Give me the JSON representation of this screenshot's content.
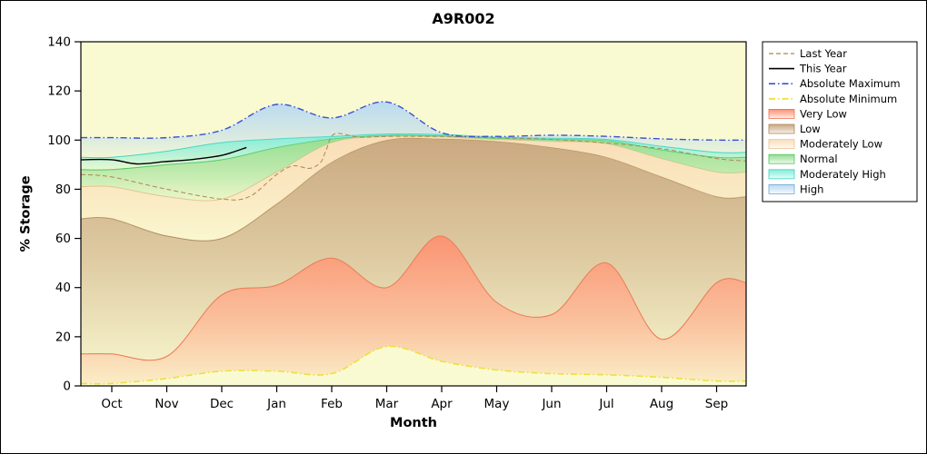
{
  "page": {
    "title": "A9R002"
  },
  "chart_data": {
    "type": "area",
    "title": "A9R002",
    "xlabel": "Month",
    "ylabel": "% Storage",
    "x_categories": [
      "Oct",
      "Nov",
      "Dec",
      "Jan",
      "Feb",
      "Mar",
      "Apr",
      "May",
      "Jun",
      "Jul",
      "Aug",
      "Sep"
    ],
    "ylim": [
      0,
      140
    ],
    "yticks": [
      0,
      20,
      40,
      60,
      80,
      100,
      120,
      140
    ],
    "plot_background": "#FAFAD2",
    "grid": false,
    "legend_position": "outside-right",
    "boundaries": {
      "abs_min": [
        1,
        3,
        6,
        6,
        5,
        16,
        10,
        6.5,
        5,
        4.5,
        3.5,
        2
      ],
      "very_low_top": [
        13,
        12,
        37,
        41,
        52,
        40,
        61,
        34,
        29,
        50,
        19,
        42
      ],
      "low_top": [
        68,
        61,
        60,
        74,
        91,
        100,
        100.5,
        99.5,
        97,
        93,
        85,
        77
      ],
      "moderately_low_top": [
        81,
        77,
        76,
        87,
        99,
        101.5,
        101.3,
        100.3,
        99.5,
        98.5,
        92.5,
        87
      ],
      "normal_top": [
        88,
        90,
        92,
        97,
        100.5,
        102,
        101.8,
        100.8,
        100.3,
        99.8,
        96,
        93
      ],
      "moderately_high_top": [
        93,
        95.5,
        99,
        100.5,
        101.5,
        102.5,
        102.3,
        101.2,
        100.8,
        100.3,
        97.5,
        95
      ],
      "abs_max": [
        101,
        101,
        104,
        114.5,
        109,
        115.5,
        103,
        101.5,
        102,
        101.5,
        100.5,
        100
      ]
    },
    "bands": [
      {
        "name": "Very Low",
        "fill": "#FA8E6E",
        "edge": "#F2714C",
        "lower": "abs_min",
        "upper": "very_low_top"
      },
      {
        "name": "Low",
        "fill": "#C8A57C",
        "edge": "#AA8A5A",
        "lower": "very_low_top",
        "upper": "low_top"
      },
      {
        "name": "Moderately Low",
        "fill": "#F9DCB6",
        "edge": "#EAC491",
        "lower": "low_top",
        "upper": "moderately_low_top"
      },
      {
        "name": "Normal",
        "fill": "#8EDC8E",
        "edge": "#52C452",
        "lower": "moderately_low_top",
        "upper": "normal_top"
      },
      {
        "name": "Moderately High",
        "fill": "#7DEBD9",
        "edge": "#38D6BE",
        "lower": "normal_top",
        "upper": "moderately_high_top"
      },
      {
        "name": "High",
        "fill": "#B7D8F2",
        "edge": "none",
        "lower": "moderately_high_top",
        "upper": "abs_max"
      }
    ],
    "lines": [
      {
        "name": "Last Year",
        "color": "#B08552",
        "dash": "5 3",
        "width": 1,
        "x": [
          -0.56,
          0,
          1,
          2,
          2.5,
          3,
          3.3,
          3.6,
          3.8,
          3.9,
          4.05,
          4.5,
          5,
          6,
          7,
          8,
          9,
          10,
          11,
          11.54
        ],
        "y": [
          86,
          85,
          80,
          76,
          77,
          86,
          89.5,
          88.5,
          91,
          96,
          102.5,
          101.2,
          101.5,
          101.5,
          101,
          100.3,
          98.8,
          96.5,
          92.5,
          91.5
        ]
      },
      {
        "name": "This Year",
        "color": "#000000",
        "dash": "",
        "width": 1.4,
        "x": [
          -0.56,
          0,
          0.45,
          0.95,
          1.5,
          2,
          2.45
        ],
        "y": [
          92,
          92,
          90.3,
          91.2,
          92.2,
          93.8,
          97
        ]
      },
      {
        "name": "Absolute Maximum",
        "color": "#3C50D2",
        "dash": "7 3 1.5 3",
        "width": 1.4,
        "boundary": "abs_max"
      },
      {
        "name": "Absolute Minimum",
        "color": "#EFDF3C",
        "dash": "7 3 1.5 3",
        "width": 1.6,
        "boundary": "abs_min"
      }
    ],
    "legend": [
      {
        "label": "Last Year",
        "sample": "line",
        "index": 0
      },
      {
        "label": "This Year",
        "sample": "line",
        "index": 1
      },
      {
        "label": "Absolute Maximum",
        "sample": "line",
        "index": 2
      },
      {
        "label": "Absolute Minimum",
        "sample": "line",
        "index": 3
      },
      {
        "label": "Very Low",
        "sample": "band",
        "index": 0
      },
      {
        "label": "Low",
        "sample": "band",
        "index": 1
      },
      {
        "label": "Moderately Low",
        "sample": "band",
        "index": 2
      },
      {
        "label": "Normal",
        "sample": "band",
        "index": 3
      },
      {
        "label": "Moderately High",
        "sample": "band",
        "index": 4
      },
      {
        "label": "High",
        "sample": "band",
        "index": 5
      }
    ]
  }
}
